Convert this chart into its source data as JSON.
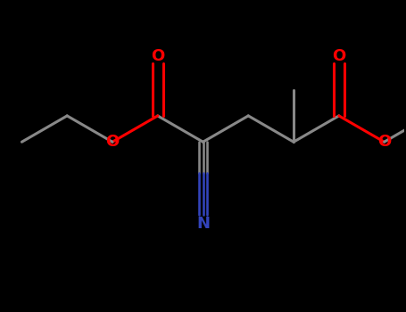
{
  "background_color": "#000000",
  "bond_color": "#888888",
  "oxygen_color": "#ff0000",
  "nitrogen_color": "#3344bb",
  "line_width": 2.2,
  "figsize": [
    4.55,
    3.5
  ],
  "dpi": 100,
  "xlim": [
    0,
    10
  ],
  "ylim": [
    0,
    7.7
  ]
}
